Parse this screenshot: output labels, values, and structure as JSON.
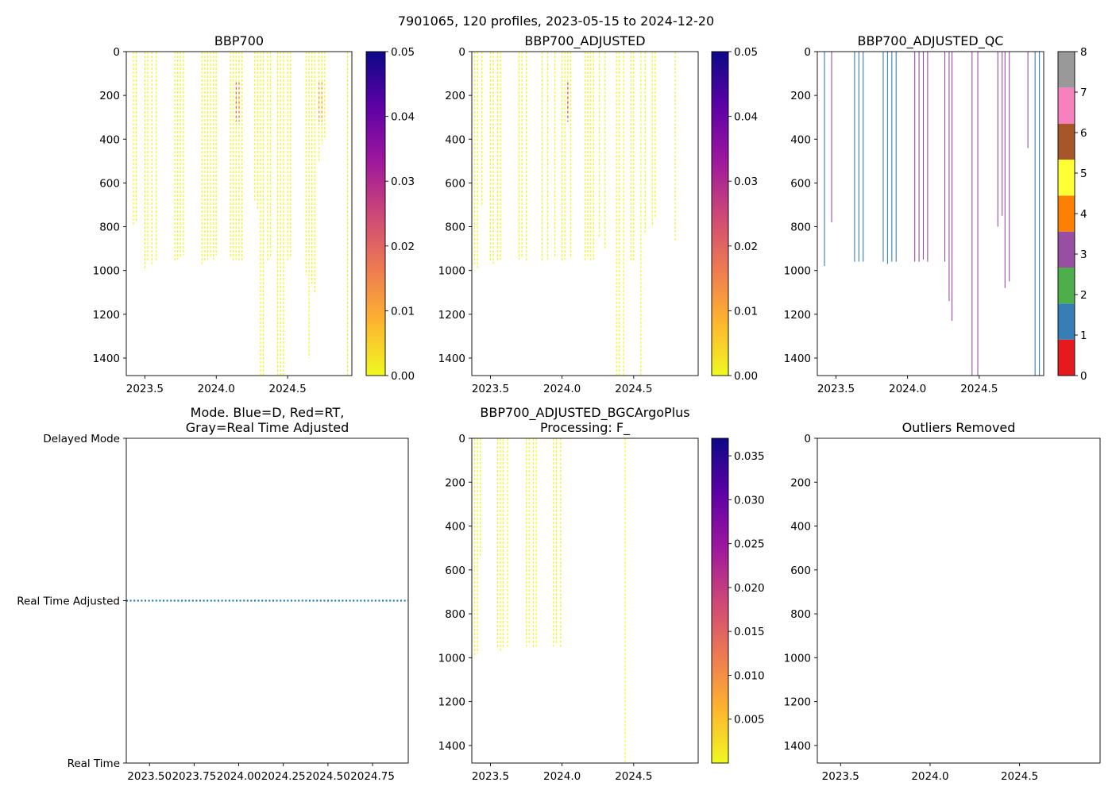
{
  "figure_title": "7901065, 120 profiles, 2023-05-15 to 2024-12-20",
  "colors": {
    "plasma_r": [
      "#f0f921",
      "#fdb42f",
      "#ed7953",
      "#cc4778",
      "#9c179e",
      "#5c01a6",
      "#0d0887"
    ],
    "qc": [
      "#e41a1c",
      "#377eb8",
      "#4daf4a",
      "#984ea3",
      "#ff7f00",
      "#ffff33",
      "#a65628",
      "#f781bf",
      "#999999"
    ],
    "mode_line": "#1f77b4"
  },
  "chart_data": [
    {
      "id": "bbp700",
      "type": "heatmap",
      "title": "BBP700",
      "title_line2": "",
      "xlim": [
        2023.37,
        2024.95
      ],
      "ylim": [
        0,
        1480
      ],
      "y_inverted": true,
      "xticks": [
        2023.5,
        2024.0,
        2024.5
      ],
      "xtick_labels": [
        "2023.5",
        "2024.0",
        "2024.5"
      ],
      "yticks": [
        0,
        200,
        400,
        600,
        800,
        1000,
        1200,
        1400
      ],
      "ytick_labels": [
        "0",
        "200",
        "400",
        "600",
        "800",
        "1000",
        "1200",
        "1400"
      ],
      "colorbar": {
        "kind": "continuous",
        "range": [
          0,
          0.05
        ],
        "ticks": [
          0,
          0.01,
          0.02,
          0.03,
          0.04,
          0.05
        ],
        "tick_labels": [
          "0.00",
          "0.01",
          "0.02",
          "0.03",
          "0.04",
          "0.05"
        ]
      },
      "profiles": [
        {
          "x": 2023.42,
          "depth": 790
        },
        {
          "x": 2023.44,
          "depth": 780
        },
        {
          "x": 2023.5,
          "depth": 1000
        },
        {
          "x": 2023.52,
          "depth": 960
        },
        {
          "x": 2023.55,
          "depth": 970
        },
        {
          "x": 2023.58,
          "depth": 960
        },
        {
          "x": 2023.71,
          "depth": 960
        },
        {
          "x": 2023.73,
          "depth": 950
        },
        {
          "x": 2023.75,
          "depth": 940
        },
        {
          "x": 2023.77,
          "depth": 930
        },
        {
          "x": 2023.9,
          "depth": 970
        },
        {
          "x": 2023.92,
          "depth": 960
        },
        {
          "x": 2023.94,
          "depth": 950
        },
        {
          "x": 2023.96,
          "depth": 940
        },
        {
          "x": 2023.98,
          "depth": 950
        },
        {
          "x": 2024.0,
          "depth": 930
        },
        {
          "x": 2024.1,
          "depth": 940
        },
        {
          "x": 2024.12,
          "depth": 960
        },
        {
          "x": 2024.14,
          "depth": 950,
          "max": 0.02
        },
        {
          "x": 2024.16,
          "depth": 960,
          "max": 0.015
        },
        {
          "x": 2024.18,
          "depth": 960
        },
        {
          "x": 2024.27,
          "depth": 680
        },
        {
          "x": 2024.29,
          "depth": 720
        },
        {
          "x": 2024.31,
          "depth": 1480
        },
        {
          "x": 2024.33,
          "depth": 1480
        },
        {
          "x": 2024.36,
          "depth": 960
        },
        {
          "x": 2024.38,
          "depth": 940
        },
        {
          "x": 2024.43,
          "depth": 1480
        },
        {
          "x": 2024.45,
          "depth": 1480
        },
        {
          "x": 2024.47,
          "depth": 1480
        },
        {
          "x": 2024.5,
          "depth": 960
        },
        {
          "x": 2024.52,
          "depth": 940
        },
        {
          "x": 2024.63,
          "depth": 1020
        },
        {
          "x": 2024.65,
          "depth": 1400
        },
        {
          "x": 2024.67,
          "depth": 1060
        },
        {
          "x": 2024.69,
          "depth": 1100
        },
        {
          "x": 2024.72,
          "depth": 500,
          "max": 0.012
        },
        {
          "x": 2024.74,
          "depth": 420,
          "max": 0.012
        },
        {
          "x": 2024.76,
          "depth": 400
        },
        {
          "x": 2024.92,
          "depth": 1480
        }
      ]
    },
    {
      "id": "bbp700_adjusted",
      "type": "heatmap",
      "title": "BBP700_ADJUSTED",
      "title_line2": "",
      "xlim": [
        2023.37,
        2024.95
      ],
      "ylim": [
        0,
        1480
      ],
      "y_inverted": true,
      "xticks": [
        2023.5,
        2024.0,
        2024.5
      ],
      "xtick_labels": [
        "2023.5",
        "2024.0",
        "2024.5"
      ],
      "yticks": [
        0,
        200,
        400,
        600,
        800,
        1000,
        1200,
        1400
      ],
      "ytick_labels": [
        "0",
        "200",
        "400",
        "600",
        "800",
        "1000",
        "1200",
        "1400"
      ],
      "colorbar": {
        "kind": "continuous",
        "range": [
          0,
          0.05
        ],
        "ticks": [
          0,
          0.01,
          0.02,
          0.03,
          0.04,
          0.05
        ],
        "tick_labels": [
          "0.00",
          "0.01",
          "0.02",
          "0.03",
          "0.04",
          "0.05"
        ]
      },
      "profiles": [
        {
          "x": 2023.39,
          "depth": 980
        },
        {
          "x": 2023.41,
          "depth": 990
        },
        {
          "x": 2023.44,
          "depth": 700
        },
        {
          "x": 2023.5,
          "depth": 960
        },
        {
          "x": 2023.52,
          "depth": 970
        },
        {
          "x": 2023.55,
          "depth": 960
        },
        {
          "x": 2023.57,
          "depth": 950
        },
        {
          "x": 2023.7,
          "depth": 950
        },
        {
          "x": 2023.72,
          "depth": 940
        },
        {
          "x": 2023.75,
          "depth": 960
        },
        {
          "x": 2023.86,
          "depth": 960
        },
        {
          "x": 2023.9,
          "depth": 950
        },
        {
          "x": 2023.95,
          "depth": 940
        },
        {
          "x": 2024.0,
          "depth": 960
        },
        {
          "x": 2024.02,
          "depth": 950
        },
        {
          "x": 2024.04,
          "depth": 300,
          "max": 0.022
        },
        {
          "x": 2024.06,
          "depth": 940
        },
        {
          "x": 2024.16,
          "depth": 960
        },
        {
          "x": 2024.18,
          "depth": 940
        },
        {
          "x": 2024.2,
          "depth": 960
        },
        {
          "x": 2024.22,
          "depth": 950
        },
        {
          "x": 2024.26,
          "depth": 850
        },
        {
          "x": 2024.3,
          "depth": 900
        },
        {
          "x": 2024.38,
          "depth": 1480
        },
        {
          "x": 2024.4,
          "depth": 1480
        },
        {
          "x": 2024.43,
          "depth": 1480
        },
        {
          "x": 2024.48,
          "depth": 960
        },
        {
          "x": 2024.5,
          "depth": 960
        },
        {
          "x": 2024.55,
          "depth": 1480
        },
        {
          "x": 2024.58,
          "depth": 830
        },
        {
          "x": 2024.63,
          "depth": 800
        },
        {
          "x": 2024.65,
          "depth": 760
        },
        {
          "x": 2024.79,
          "depth": 870
        }
      ]
    },
    {
      "id": "bbp700_adjusted_qc",
      "type": "heatmap",
      "title": "BBP700_ADJUSTED_QC",
      "title_line2": "",
      "xlim": [
        2023.37,
        2024.95
      ],
      "ylim": [
        0,
        1480
      ],
      "y_inverted": true,
      "xticks": [
        2023.5,
        2024.0,
        2024.5
      ],
      "xtick_labels": [
        "2023.5",
        "2024.0",
        "2024.5"
      ],
      "yticks": [
        0,
        200,
        400,
        600,
        800,
        1000,
        1200,
        1400
      ],
      "ytick_labels": [
        "0",
        "200",
        "400",
        "600",
        "800",
        "1000",
        "1200",
        "1400"
      ],
      "colorbar": {
        "kind": "discrete",
        "range": [
          0,
          8
        ],
        "ticks": [
          0,
          1,
          2,
          3,
          4,
          5,
          6,
          7,
          8
        ],
        "tick_labels": [
          "0",
          "1",
          "2",
          "3",
          "4",
          "5",
          "6",
          "7",
          "8"
        ]
      },
      "profiles": [
        {
          "x": 2023.42,
          "depth": 980,
          "qc": 1
        },
        {
          "x": 2023.47,
          "depth": 780,
          "qc": 3
        },
        {
          "x": 2023.63,
          "depth": 960,
          "qc": 1
        },
        {
          "x": 2023.66,
          "depth": 960,
          "qc": 1
        },
        {
          "x": 2023.69,
          "depth": 960,
          "qc": 1
        },
        {
          "x": 2023.83,
          "depth": 960,
          "qc": 1
        },
        {
          "x": 2023.86,
          "depth": 970,
          "qc": 1
        },
        {
          "x": 2023.89,
          "depth": 960,
          "qc": 1
        },
        {
          "x": 2023.92,
          "depth": 960,
          "qc": 1
        },
        {
          "x": 2024.05,
          "depth": 960,
          "qc": 3
        },
        {
          "x": 2024.08,
          "depth": 960,
          "qc": 3
        },
        {
          "x": 2024.11,
          "depth": 950,
          "qc": 3
        },
        {
          "x": 2024.14,
          "depth": 960,
          "qc": 3
        },
        {
          "x": 2024.26,
          "depth": 960,
          "qc": 3
        },
        {
          "x": 2024.29,
          "depth": 1140,
          "qc": 3
        },
        {
          "x": 2024.31,
          "depth": 1230,
          "qc": 3
        },
        {
          "x": 2024.45,
          "depth": 1480,
          "qc": 3
        },
        {
          "x": 2024.49,
          "depth": 1480,
          "qc": 3
        },
        {
          "x": 2024.63,
          "depth": 800,
          "qc": 3
        },
        {
          "x": 2024.66,
          "depth": 750,
          "qc": 3
        },
        {
          "x": 2024.68,
          "depth": 1080,
          "qc": 3
        },
        {
          "x": 2024.71,
          "depth": 1050,
          "qc": 3
        },
        {
          "x": 2024.84,
          "depth": 440,
          "qc": 3
        },
        {
          "x": 2024.89,
          "depth": 1480,
          "qc": 1
        },
        {
          "x": 2024.92,
          "depth": 1480,
          "qc": 1
        }
      ]
    },
    {
      "id": "mode",
      "type": "line",
      "title": "Mode. Blue=D, Red=RT,",
      "title_line2": "Gray=Real Time Adjusted",
      "xlim": [
        2023.37,
        2024.95
      ],
      "ylim": [
        0,
        2
      ],
      "ytick_labels": [
        "Real Time",
        "Real Time Adjusted",
        "Delayed Mode"
      ],
      "yticks": [
        0,
        1,
        2
      ],
      "xticks": [
        2023.5,
        2023.75,
        2024.0,
        2024.25,
        2024.5,
        2024.75
      ],
      "xtick_labels": [
        "2023.50",
        "2023.75",
        "2024.00",
        "2024.25",
        "2024.50",
        "2024.75"
      ],
      "series": [
        {
          "name": "mode",
          "y": 1,
          "x_range": [
            2023.37,
            2024.95
          ],
          "style": "dotted"
        }
      ]
    },
    {
      "id": "bbp700_bgcargoplus",
      "type": "heatmap",
      "title": "BBP700_ADJUSTED_BGCArgoPlus",
      "title_line2": "Processing: F_",
      "xlim": [
        2023.37,
        2024.95
      ],
      "ylim": [
        0,
        1480
      ],
      "y_inverted": true,
      "xticks": [
        2023.5,
        2024.0,
        2024.5
      ],
      "xtick_labels": [
        "2023.5",
        "2024.0",
        "2024.5"
      ],
      "yticks": [
        0,
        200,
        400,
        600,
        800,
        1000,
        1200,
        1400
      ],
      "ytick_labels": [
        "0",
        "200",
        "400",
        "600",
        "800",
        "1000",
        "1200",
        "1400"
      ],
      "colorbar": {
        "kind": "continuous",
        "range": [
          0,
          0.037
        ],
        "ticks": [
          0.005,
          0.01,
          0.015,
          0.02,
          0.025,
          0.03,
          0.035
        ],
        "tick_labels": [
          "0.005",
          "0.010",
          "0.015",
          "0.020",
          "0.025",
          "0.030",
          "0.035"
        ]
      },
      "profiles": [
        {
          "x": 2023.39,
          "depth": 990
        },
        {
          "x": 2023.41,
          "depth": 980
        },
        {
          "x": 2023.43,
          "depth": 540
        },
        {
          "x": 2023.55,
          "depth": 960
        },
        {
          "x": 2023.57,
          "depth": 970
        },
        {
          "x": 2023.59,
          "depth": 960
        },
        {
          "x": 2023.62,
          "depth": 950
        },
        {
          "x": 2023.75,
          "depth": 950
        },
        {
          "x": 2023.77,
          "depth": 940
        },
        {
          "x": 2023.8,
          "depth": 960
        },
        {
          "x": 2023.82,
          "depth": 950
        },
        {
          "x": 2023.94,
          "depth": 950
        },
        {
          "x": 2023.96,
          "depth": 940
        },
        {
          "x": 2023.99,
          "depth": 960
        },
        {
          "x": 2024.44,
          "depth": 1480
        }
      ]
    },
    {
      "id": "outliers",
      "type": "scatter",
      "title": "Outliers Removed",
      "title_line2": "",
      "xlim": [
        2023.37,
        2024.95
      ],
      "ylim": [
        0,
        1480
      ],
      "y_inverted": true,
      "xticks": [
        2023.5,
        2024.0,
        2024.5
      ],
      "xtick_labels": [
        "2023.5",
        "2024.0",
        "2024.5"
      ],
      "yticks": [
        0,
        200,
        400,
        600,
        800,
        1000,
        1200,
        1400
      ],
      "ytick_labels": [
        "0",
        "200",
        "400",
        "600",
        "800",
        "1000",
        "1200",
        "1400"
      ],
      "points": []
    }
  ]
}
